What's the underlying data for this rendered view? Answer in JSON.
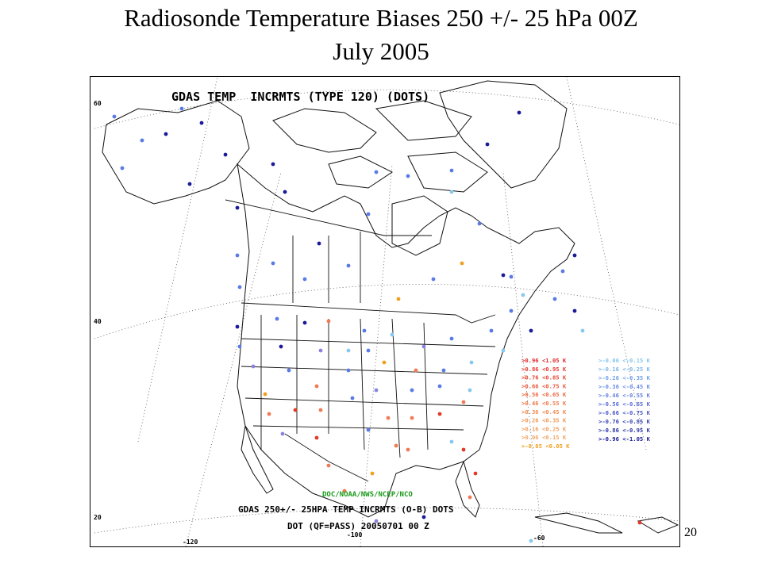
{
  "slide": {
    "title_line1": "Radiosonde Temperature Biases 250 +/- 25 hPa 00Z",
    "title_line2": "July 2005",
    "page_number": "20"
  },
  "map": {
    "header": "GDAS TEMP  INCRMTS (TYPE 120) (DOTS)",
    "credit": "DOC/NOAA/NWS/NCEP/NCO",
    "footer_line1": "GDAS 250+/- 25HPA TEMP INCRMTS (O-B) DOTS",
    "footer_line2": "DOT (QF=PASS) 20050701 00 Z",
    "lat_labels": [
      "60",
      "40",
      "20"
    ],
    "lon_labels": [
      "-120",
      "-100",
      "-60"
    ],
    "colors": {
      "warm_1": "#e03a2a",
      "warm_2": "#f07a55",
      "warm_3": "#f0a050",
      "neutral": "#f0a020",
      "cool_1": "#87c7f0",
      "cool_2": "#5a7be6",
      "cool_3": "#8a82e0",
      "cool_4": "#1a1a9a",
      "credit": "#1a9a1a"
    },
    "legend_warm": [
      {
        "label": ">0.96 <1.05 K",
        "color": "#e02a2a"
      },
      {
        "label": ">0.86 <0.95 K",
        "color": "#e83a30"
      },
      {
        "label": ">0.76 <0.85 K",
        "color": "#e84a36"
      },
      {
        "label": ">0.66 <0.75 K",
        "color": "#ec5a40"
      },
      {
        "label": ">0.56 <0.65 K",
        "color": "#ee6a46"
      },
      {
        "label": ">0.46 <0.55 K",
        "color": "#f07a4c"
      },
      {
        "label": ">0.36 <0.45 K",
        "color": "#f08a52"
      },
      {
        "label": ">0.26 <0.35 K",
        "color": "#f09a58"
      },
      {
        "label": ">0.16 <0.25 K",
        "color": "#f0a060"
      },
      {
        "label": ">0.06 <0.15 K",
        "color": "#f0a868"
      },
      {
        "label": ">-0.05 <0.05 K",
        "color": "#f0a020"
      }
    ],
    "legend_cool": [
      {
        "label": ">-0.06 <-0.15 K",
        "color": "#87c7f0"
      },
      {
        "label": ">-0.16 <-0.25 K",
        "color": "#7ab6ee"
      },
      {
        "label": ">-0.26 <-0.35 K",
        "color": "#6fa2ea"
      },
      {
        "label": ">-0.36 <-0.45 K",
        "color": "#6a8ee6"
      },
      {
        "label": ">-0.46 <-0.55 K",
        "color": "#6580e0"
      },
      {
        "label": ">-0.56 <-0.65 K",
        "color": "#5a6cd8"
      },
      {
        "label": ">-0.66 <-0.75 K",
        "color": "#4a58c8"
      },
      {
        "label": ">-0.76 <-0.85 K",
        "color": "#3a46b8"
      },
      {
        "label": ">-0.86 <-0.95 K",
        "color": "#2a34a8"
      },
      {
        "label": ">-0.96 <-1.05 K",
        "color": "#1a1a9a"
      }
    ]
  }
}
